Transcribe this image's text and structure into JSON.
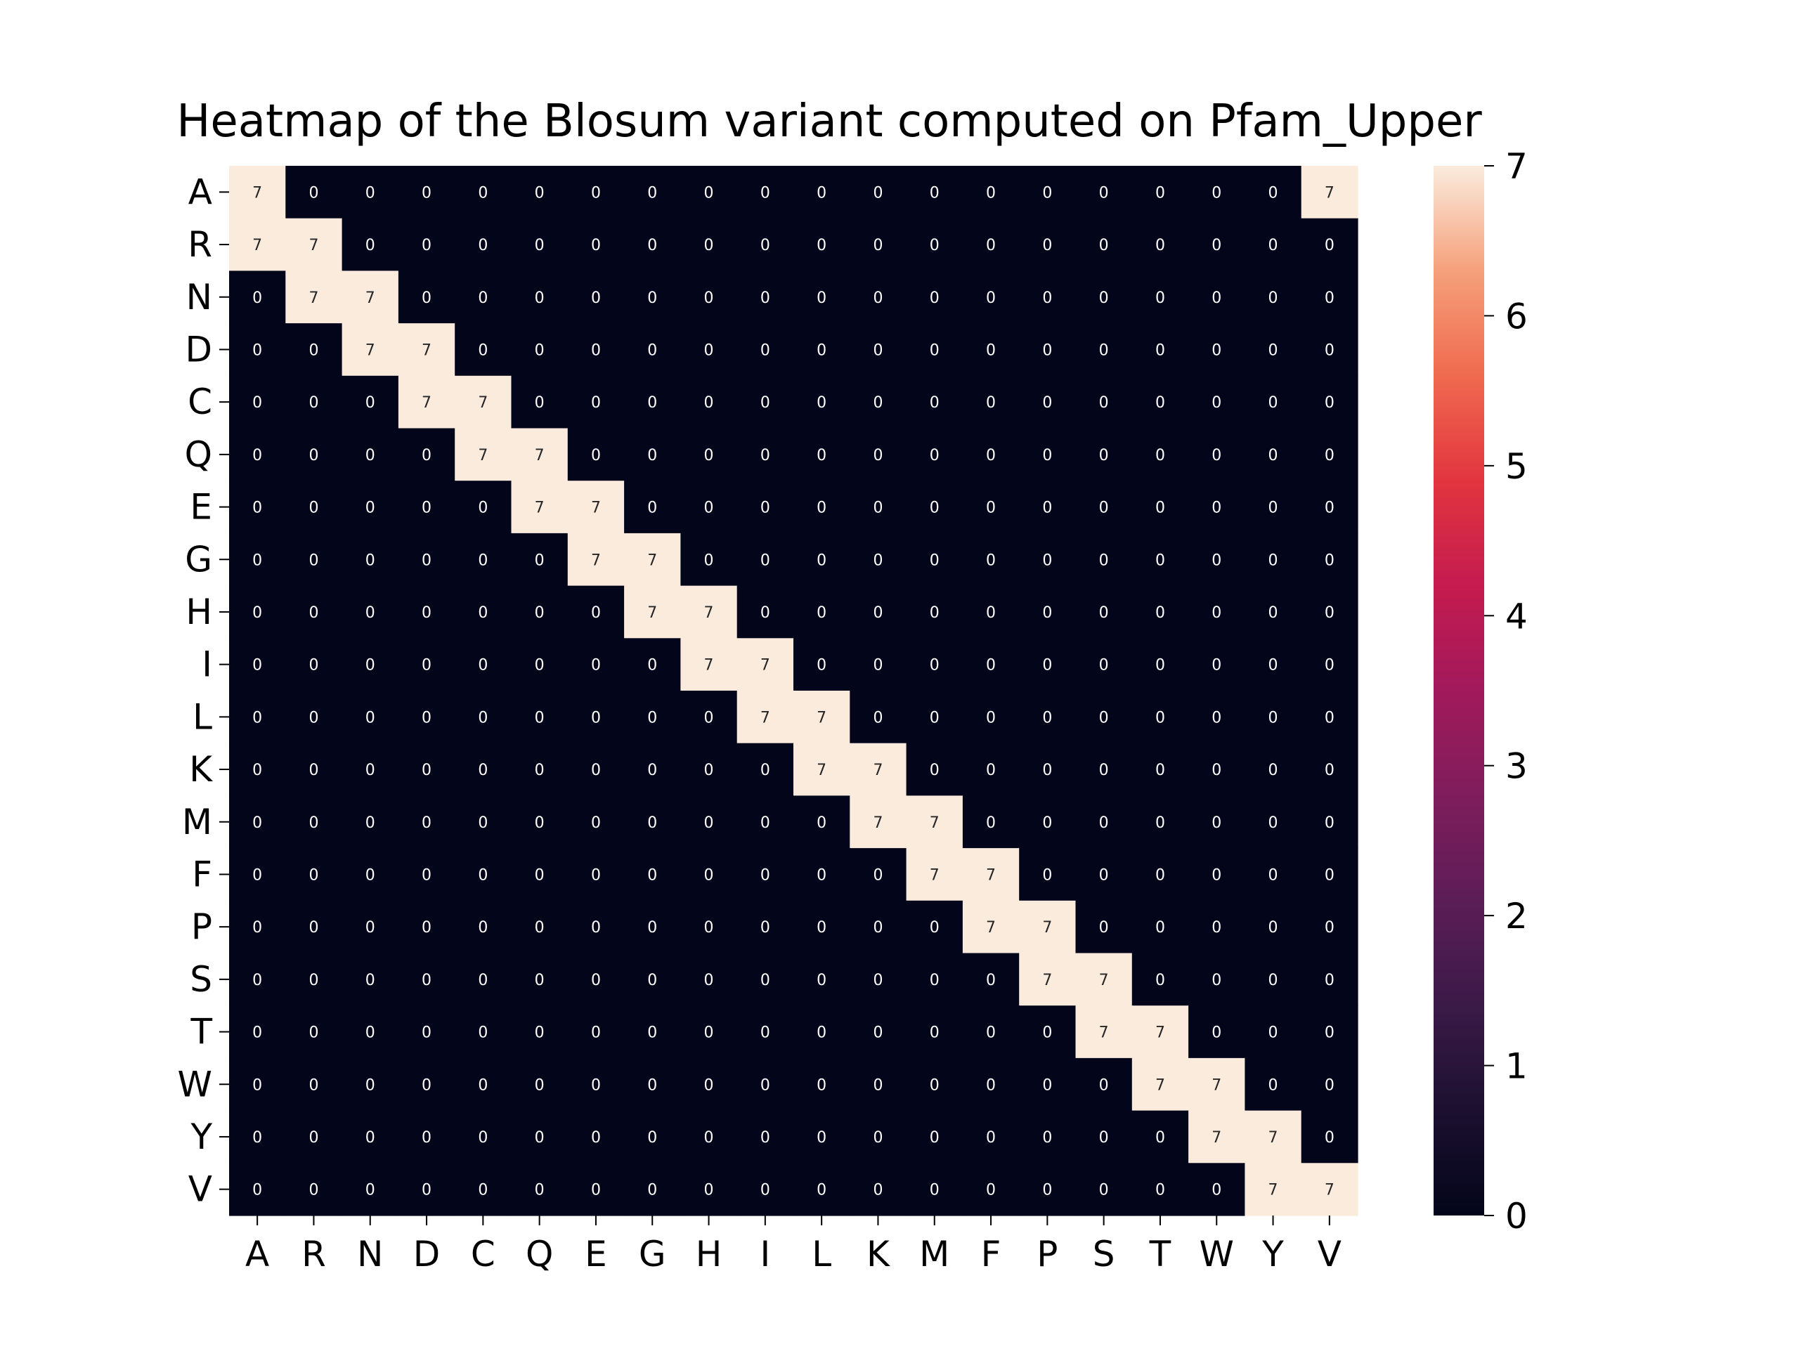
{
  "chart_data": {
    "type": "heatmap",
    "title": "Heatmap of the Blosum variant computed on Pfam_Upper",
    "xlabel": "",
    "ylabel": "",
    "x_labels": [
      "A",
      "R",
      "N",
      "D",
      "C",
      "Q",
      "E",
      "G",
      "H",
      "I",
      "L",
      "K",
      "M",
      "F",
      "P",
      "S",
      "T",
      "W",
      "Y",
      "V"
    ],
    "y_labels": [
      "A",
      "R",
      "N",
      "D",
      "C",
      "Q",
      "E",
      "G",
      "H",
      "I",
      "L",
      "K",
      "M",
      "F",
      "P",
      "S",
      "T",
      "W",
      "Y",
      "V"
    ],
    "values": [
      [
        7,
        0,
        0,
        0,
        0,
        0,
        0,
        0,
        0,
        0,
        0,
        0,
        0,
        0,
        0,
        0,
        0,
        0,
        0,
        7
      ],
      [
        7,
        7,
        0,
        0,
        0,
        0,
        0,
        0,
        0,
        0,
        0,
        0,
        0,
        0,
        0,
        0,
        0,
        0,
        0,
        0
      ],
      [
        0,
        7,
        7,
        0,
        0,
        0,
        0,
        0,
        0,
        0,
        0,
        0,
        0,
        0,
        0,
        0,
        0,
        0,
        0,
        0
      ],
      [
        0,
        0,
        7,
        7,
        0,
        0,
        0,
        0,
        0,
        0,
        0,
        0,
        0,
        0,
        0,
        0,
        0,
        0,
        0,
        0
      ],
      [
        0,
        0,
        0,
        7,
        7,
        0,
        0,
        0,
        0,
        0,
        0,
        0,
        0,
        0,
        0,
        0,
        0,
        0,
        0,
        0
      ],
      [
        0,
        0,
        0,
        0,
        7,
        7,
        0,
        0,
        0,
        0,
        0,
        0,
        0,
        0,
        0,
        0,
        0,
        0,
        0,
        0
      ],
      [
        0,
        0,
        0,
        0,
        0,
        7,
        7,
        0,
        0,
        0,
        0,
        0,
        0,
        0,
        0,
        0,
        0,
        0,
        0,
        0
      ],
      [
        0,
        0,
        0,
        0,
        0,
        0,
        7,
        7,
        0,
        0,
        0,
        0,
        0,
        0,
        0,
        0,
        0,
        0,
        0,
        0
      ],
      [
        0,
        0,
        0,
        0,
        0,
        0,
        0,
        7,
        7,
        0,
        0,
        0,
        0,
        0,
        0,
        0,
        0,
        0,
        0,
        0
      ],
      [
        0,
        0,
        0,
        0,
        0,
        0,
        0,
        0,
        7,
        7,
        0,
        0,
        0,
        0,
        0,
        0,
        0,
        0,
        0,
        0
      ],
      [
        0,
        0,
        0,
        0,
        0,
        0,
        0,
        0,
        0,
        7,
        7,
        0,
        0,
        0,
        0,
        0,
        0,
        0,
        0,
        0
      ],
      [
        0,
        0,
        0,
        0,
        0,
        0,
        0,
        0,
        0,
        0,
        7,
        7,
        0,
        0,
        0,
        0,
        0,
        0,
        0,
        0
      ],
      [
        0,
        0,
        0,
        0,
        0,
        0,
        0,
        0,
        0,
        0,
        0,
        7,
        7,
        0,
        0,
        0,
        0,
        0,
        0,
        0
      ],
      [
        0,
        0,
        0,
        0,
        0,
        0,
        0,
        0,
        0,
        0,
        0,
        0,
        7,
        7,
        0,
        0,
        0,
        0,
        0,
        0
      ],
      [
        0,
        0,
        0,
        0,
        0,
        0,
        0,
        0,
        0,
        0,
        0,
        0,
        0,
        7,
        7,
        0,
        0,
        0,
        0,
        0
      ],
      [
        0,
        0,
        0,
        0,
        0,
        0,
        0,
        0,
        0,
        0,
        0,
        0,
        0,
        0,
        7,
        7,
        0,
        0,
        0,
        0
      ],
      [
        0,
        0,
        0,
        0,
        0,
        0,
        0,
        0,
        0,
        0,
        0,
        0,
        0,
        0,
        0,
        7,
        7,
        0,
        0,
        0
      ],
      [
        0,
        0,
        0,
        0,
        0,
        0,
        0,
        0,
        0,
        0,
        0,
        0,
        0,
        0,
        0,
        0,
        7,
        7,
        0,
        0
      ],
      [
        0,
        0,
        0,
        0,
        0,
        0,
        0,
        0,
        0,
        0,
        0,
        0,
        0,
        0,
        0,
        0,
        0,
        7,
        7,
        0
      ],
      [
        0,
        0,
        0,
        0,
        0,
        0,
        0,
        0,
        0,
        0,
        0,
        0,
        0,
        0,
        0,
        0,
        0,
        0,
        7,
        7
      ]
    ],
    "colorbar": {
      "colormap": "rocket",
      "range": [
        0,
        7
      ],
      "ticks": [
        "0",
        "1",
        "2",
        "3",
        "4",
        "5",
        "6",
        "7"
      ]
    },
    "colors": {
      "low": "#03051a",
      "high": "#faebdd"
    },
    "annotations": true,
    "grid": false
  }
}
